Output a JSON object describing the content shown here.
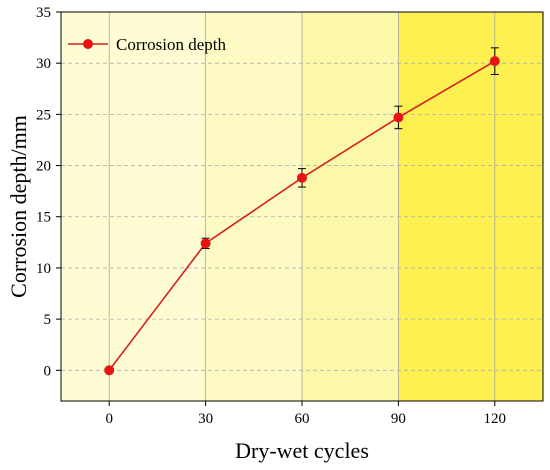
{
  "chart_data": {
    "type": "line",
    "xlabel": "Dry-wet cycles",
    "ylabel": "Corrosion depth/mm",
    "xlim": [
      -15,
      135
    ],
    "ylim": [
      -3,
      35
    ],
    "xticks": [
      0,
      30,
      60,
      90,
      120
    ],
    "yticks": [
      0,
      5,
      10,
      15,
      20,
      25,
      30,
      35
    ],
    "grid": true,
    "legend_position": "top-left",
    "background_bands": [
      {
        "from": -15,
        "to": 30,
        "color": "#fefcd2"
      },
      {
        "from": 30,
        "to": 60,
        "color": "#fdfac4"
      },
      {
        "from": 60,
        "to": 90,
        "color": "#fcf8a9"
      },
      {
        "from": 90,
        "to": 135,
        "color": "#fdf050"
      }
    ],
    "series": [
      {
        "name": "Corrosion depth",
        "color": "#d62020",
        "marker_color": "#ee1111",
        "x": [
          0,
          30,
          60,
          90,
          120
        ],
        "y": [
          0,
          12.4,
          18.8,
          24.7,
          30.2
        ],
        "error": [
          0,
          0.5,
          0.9,
          1.1,
          1.3
        ]
      }
    ]
  }
}
